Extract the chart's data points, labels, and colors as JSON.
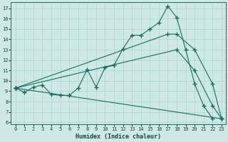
{
  "xlabel": "Humidex (Indice chaleur)",
  "bg_color": "#cde8e5",
  "line_color": "#1a6b5e",
  "grid_color": "#aed4cf",
  "xlim": [
    -0.5,
    23.5
  ],
  "ylim": [
    5.8,
    17.6
  ],
  "yticks": [
    6,
    7,
    8,
    9,
    10,
    11,
    12,
    13,
    14,
    15,
    16,
    17
  ],
  "xticks": [
    0,
    1,
    2,
    3,
    4,
    5,
    6,
    7,
    8,
    9,
    10,
    11,
    12,
    13,
    14,
    15,
    16,
    17,
    18,
    19,
    20,
    21,
    22,
    23
  ],
  "lines": [
    {
      "x": [
        0,
        1,
        2,
        3,
        4,
        5,
        6,
        7,
        8,
        9,
        10,
        11,
        12,
        13,
        14,
        15,
        16,
        17,
        18,
        19,
        20,
        21,
        22
      ],
      "y": [
        9.3,
        8.9,
        9.4,
        9.6,
        8.7,
        8.6,
        8.6,
        9.3,
        11.1,
        9.4,
        11.3,
        11.5,
        13.1,
        14.4,
        14.4,
        15.0,
        15.6,
        17.2,
        16.1,
        13.0,
        9.7,
        7.6,
        6.35
      ]
    },
    {
      "comment": "upper straight-ish line: 0->17->18->20->22->23",
      "x": [
        0,
        17,
        18,
        20,
        22,
        23
      ],
      "y": [
        9.3,
        14.5,
        14.5,
        13.0,
        9.7,
        6.35
      ]
    },
    {
      "comment": "middle straight line: 0->18->20->22->23",
      "x": [
        0,
        18,
        20,
        22,
        23
      ],
      "y": [
        9.3,
        13.0,
        11.0,
        7.6,
        6.35
      ]
    },
    {
      "x": [
        0,
        23
      ],
      "y": [
        9.3,
        6.35
      ]
    }
  ]
}
